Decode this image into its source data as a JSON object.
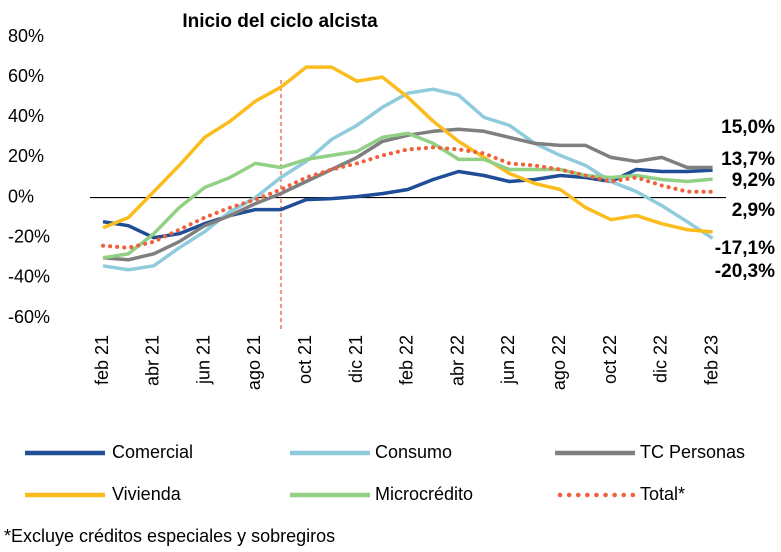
{
  "chart_data": {
    "type": "line",
    "title": "Inicio del ciclo alcista",
    "categories": [
      "feb 21",
      null,
      "abr 21",
      null,
      "jun 21",
      null,
      "ago 21",
      null,
      "oct 21",
      null,
      "dic 21",
      null,
      "feb 22",
      null,
      "abr 22",
      null,
      "jun 22",
      null,
      "ago 22",
      null,
      "oct 22",
      null,
      "dic 22",
      null,
      "feb 23"
    ],
    "ylim": [
      -60,
      80
    ],
    "yticks": [
      {
        "value": -60,
        "label": "-60%"
      },
      {
        "value": -40,
        "label": "-40%"
      },
      {
        "value": -20,
        "label": "-20%"
      },
      {
        "value": 0,
        "label": "0%"
      },
      {
        "value": 20,
        "label": "20%"
      },
      {
        "value": 40,
        "label": "40%"
      },
      {
        "value": 60,
        "label": "60%"
      },
      {
        "value": 80,
        "label": "80%"
      }
    ],
    "grid": false,
    "series": [
      {
        "name": "Comercial",
        "color": "#1f4e96",
        "style": "solid",
        "values": [
          -12,
          -14,
          -20,
          -18,
          -13,
          -9,
          -6,
          -6,
          -1,
          -0.5,
          0.5,
          2,
          4,
          9,
          13,
          11,
          8,
          9,
          11,
          10,
          8,
          14,
          13,
          13,
          13.7
        ],
        "value_labels": [
          null,
          null,
          null,
          null,
          null,
          null,
          null,
          null,
          null,
          null,
          null,
          null,
          null,
          null,
          null,
          null,
          null,
          null,
          null,
          null,
          null,
          null,
          null,
          null,
          "13,7%"
        ]
      },
      {
        "name": "Consumo",
        "color": "#8fcbdc",
        "style": "solid",
        "values": [
          -34,
          -36,
          -34,
          -25,
          -17,
          -7,
          0,
          10,
          18,
          29,
          36,
          45,
          52,
          54,
          51,
          40,
          36,
          27,
          21,
          16,
          8,
          3,
          -4,
          -12,
          -20.3
        ],
        "value_labels": [
          null,
          null,
          null,
          null,
          null,
          null,
          null,
          null,
          null,
          null,
          null,
          null,
          null,
          null,
          null,
          null,
          null,
          null,
          null,
          null,
          null,
          null,
          null,
          null,
          "-20,3%"
        ]
      },
      {
        "name": "TC Personas",
        "color": "#7f7f7f",
        "style": "solid",
        "values": [
          -30,
          -31,
          -28,
          -22,
          -14,
          -9,
          -3,
          2,
          8,
          14,
          20,
          28,
          31,
          33,
          34,
          33,
          30,
          27,
          26,
          26,
          20,
          18,
          20,
          15,
          15.0
        ],
        "value_labels": [
          null,
          null,
          null,
          null,
          null,
          null,
          null,
          null,
          null,
          null,
          null,
          null,
          null,
          null,
          null,
          null,
          null,
          null,
          null,
          null,
          null,
          null,
          null,
          null,
          "15,0%"
        ]
      },
      {
        "name": "Vivienda",
        "color": "#fbbc1e",
        "style": "solid",
        "values": [
          -15,
          -10,
          3,
          16,
          30,
          38,
          48,
          55,
          65,
          65,
          58,
          60,
          50,
          38,
          28,
          20,
          12,
          7,
          4,
          -5,
          -11,
          -9,
          -13,
          -16,
          -17.1
        ],
        "value_labels": [
          null,
          null,
          null,
          null,
          null,
          null,
          null,
          null,
          null,
          null,
          null,
          null,
          null,
          null,
          null,
          null,
          null,
          null,
          null,
          null,
          null,
          null,
          null,
          null,
          "-17,1%"
        ]
      },
      {
        "name": "Microcrédito",
        "color": "#92d086",
        "style": "solid",
        "values": [
          -30,
          -28,
          -18,
          -5,
          5,
          10,
          17,
          15,
          19,
          21,
          23,
          30,
          32,
          27,
          19,
          19,
          14,
          14,
          14,
          11,
          10,
          11,
          9,
          8,
          9.2
        ],
        "value_labels": [
          null,
          null,
          null,
          null,
          null,
          null,
          null,
          null,
          null,
          null,
          null,
          null,
          null,
          null,
          null,
          null,
          null,
          null,
          null,
          null,
          null,
          null,
          null,
          null,
          "9,2%"
        ]
      },
      {
        "name": "Total*",
        "color": "#f0603a",
        "style": "dotted",
        "values": [
          -24,
          -25,
          -22,
          -16,
          -10,
          -5,
          -1,
          4,
          10,
          14,
          17,
          21,
          24,
          25,
          24,
          22,
          17,
          16,
          14,
          11,
          8,
          10,
          6,
          3,
          2.9
        ],
        "value_labels": [
          null,
          null,
          null,
          null,
          null,
          null,
          null,
          null,
          null,
          null,
          null,
          null,
          null,
          null,
          null,
          null,
          null,
          null,
          null,
          null,
          null,
          null,
          null,
          null,
          "2,9%"
        ]
      }
    ],
    "footnote": "*Excluye créditos especiales y sobregiros"
  }
}
